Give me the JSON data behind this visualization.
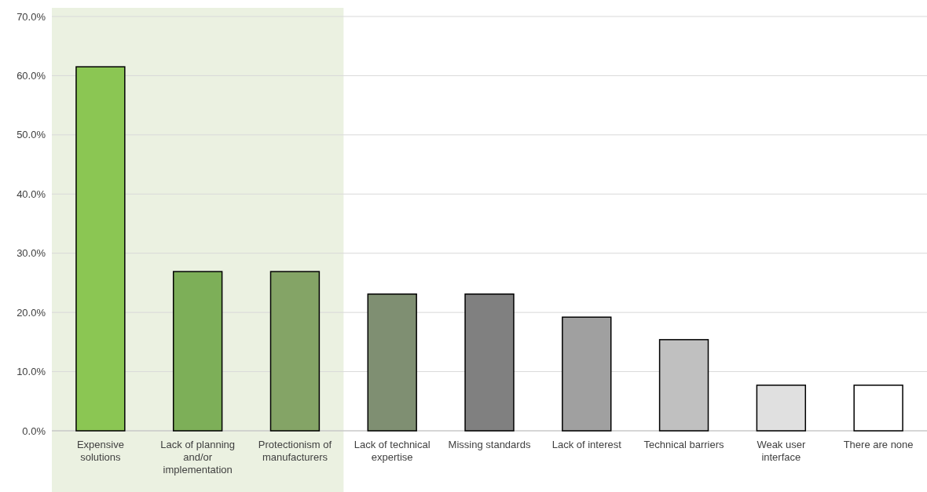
{
  "chart_data": {
    "type": "bar",
    "categories": [
      "Expensive solutions",
      "Lack of planning and/or implementation",
      "Protectionism of manufacturers",
      "Lack of technical expertise",
      "Missing standards",
      "Lack of interest",
      "Technical barriers",
      "Weak user interface",
      "There are none"
    ],
    "values": [
      61.5,
      26.9,
      26.9,
      23.1,
      23.1,
      19.2,
      15.4,
      7.7,
      7.7
    ],
    "colors": [
      "#8bc653",
      "#7daf58",
      "#84a466",
      "#7f8f72",
      "#808080",
      "#a0a0a0",
      "#c0c0c0",
      "#e0e0e0",
      "#ffffff"
    ],
    "ylim": [
      0,
      70
    ],
    "yticks": [
      {
        "value": 0,
        "label": "0.0%"
      },
      {
        "value": 10,
        "label": "10.0%"
      },
      {
        "value": 20,
        "label": "20.0%"
      },
      {
        "value": 30,
        "label": "30.0%"
      },
      {
        "value": 40,
        "label": "40.0%"
      },
      {
        "value": 50,
        "label": "50.0%"
      },
      {
        "value": 60,
        "label": "60.0%"
      },
      {
        "value": 70,
        "label": "70.0%"
      }
    ],
    "grid": "y",
    "bands": [
      {
        "axis": "x",
        "from": "Expensive solutions",
        "to": "Protectionism of manufacturers",
        "color": "#ebf1e1"
      }
    ]
  }
}
